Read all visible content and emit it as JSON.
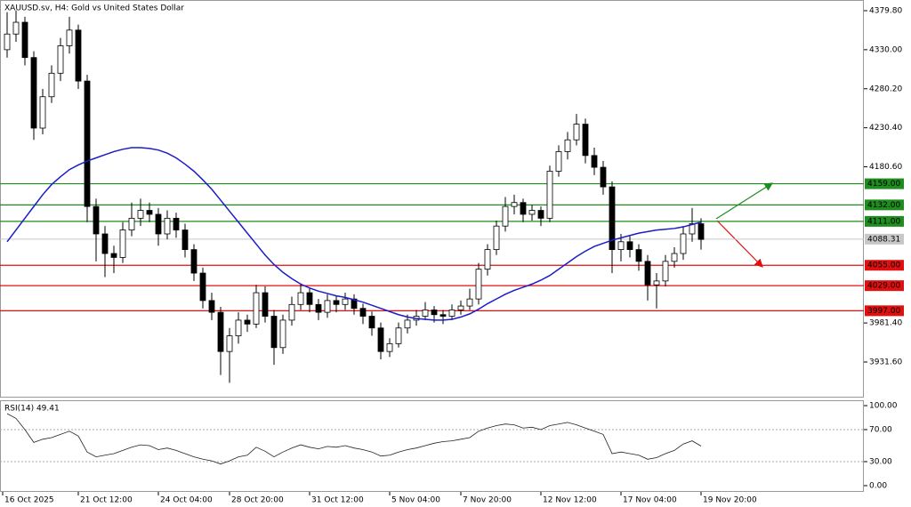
{
  "chart_data": [
    {
      "type": "candlestick",
      "title": "XAUUSD.sv, H4:  Gold vs United States Dollar",
      "ylim": [
        3886.2,
        4393.4
      ],
      "yticks": [
        {
          "value": 4379.8,
          "label": "4379.80"
        },
        {
          "value": 4330,
          "label": "4330.00"
        },
        {
          "value": 4280.2,
          "label": "4280.20"
        },
        {
          "value": 4230.4,
          "label": "4230.40"
        },
        {
          "value": 4180.6,
          "label": "4180.60"
        },
        {
          "value": 3981.4,
          "label": "3981.40"
        },
        {
          "value": 3931.6,
          "label": "3931.60"
        }
      ],
      "categories": [
        "16 Oct 2025",
        null,
        null,
        null,
        null,
        null,
        null,
        null,
        "21 Oct 12:00",
        null,
        null,
        null,
        null,
        null,
        null,
        null,
        null,
        "24 Oct 04:00",
        null,
        null,
        null,
        null,
        null,
        null,
        null,
        "28 Oct 20:00",
        null,
        null,
        null,
        null,
        null,
        null,
        null,
        null,
        "31 Oct 12:00",
        null,
        null,
        null,
        null,
        null,
        null,
        null,
        null,
        "5 Nov 04:00",
        null,
        null,
        null,
        null,
        null,
        null,
        null,
        "7 Nov 20:00",
        null,
        null,
        null,
        null,
        null,
        null,
        null,
        null,
        "12 Nov 12:00",
        null,
        null,
        null,
        null,
        null,
        null,
        null,
        null,
        "17 Nov 04:00",
        null,
        null,
        null,
        null,
        null,
        null,
        null,
        null,
        "19 Nov 20:00"
      ],
      "open": [
        4330,
        4350,
        4365,
        4320,
        4230,
        4270,
        4300,
        4335,
        4355,
        4290,
        4130,
        4095,
        4070,
        4065,
        4100,
        4115,
        4125,
        4120,
        4095,
        4115,
        4100,
        4075,
        4045,
        4010,
        3995,
        3945,
        3965,
        3985,
        3980,
        4020,
        3990,
        3950,
        3985,
        4005,
        4020,
        4005,
        3995,
        4010,
        4005,
        4012,
        4000,
        3990,
        3975,
        3945,
        3955,
        3975,
        3985,
        3990,
        3998,
        3992,
        3990,
        3998,
        4003,
        4012,
        4050,
        4075,
        4105,
        4130,
        4135,
        4120,
        4125,
        4115,
        4175,
        4200,
        4215,
        4235,
        4195,
        4180,
        4155,
        4075,
        4085,
        4075,
        4060,
        4030,
        4035,
        4060,
        4070,
        4095,
        4108
      ],
      "high": [
        4378,
        4380,
        4372,
        4328,
        4280,
        4310,
        4345,
        4372,
        4362,
        4298,
        4140,
        4105,
        4080,
        4110,
        4135,
        4140,
        4135,
        4128,
        4125,
        4122,
        4108,
        4082,
        4052,
        4020,
        4002,
        3975,
        3995,
        3992,
        4030,
        4028,
        3998,
        3992,
        4015,
        4032,
        4026,
        4012,
        4018,
        4016,
        4020,
        4018,
        4006,
        3996,
        3982,
        3962,
        3982,
        3992,
        3998,
        4008,
        4003,
        3998,
        4005,
        4010,
        4025,
        4058,
        4082,
        4112,
        4142,
        4145,
        4140,
        4132,
        4130,
        4182,
        4208,
        4225,
        4248,
        4242,
        4205,
        4188,
        4162,
        4095,
        4092,
        4082,
        4068,
        4045,
        4068,
        4078,
        4105,
        4128,
        4115
      ],
      "low": [
        4320,
        4340,
        4310,
        4215,
        4222,
        4262,
        4290,
        4325,
        4280,
        4110,
        4060,
        4040,
        4045,
        4058,
        4092,
        4105,
        4110,
        4080,
        4088,
        4090,
        4065,
        4035,
        4000,
        3985,
        3915,
        3905,
        3955,
        3970,
        3975,
        3982,
        3928,
        3942,
        3978,
        3998,
        3995,
        3985,
        3988,
        3995,
        3998,
        3992,
        3980,
        3965,
        3935,
        3938,
        3950,
        3968,
        3978,
        3985,
        3982,
        3980,
        3985,
        3992,
        3998,
        4005,
        4042,
        4068,
        4098,
        4120,
        4110,
        4112,
        4105,
        4110,
        4168,
        4190,
        4208,
        4185,
        4170,
        4145,
        4045,
        4060,
        4065,
        4048,
        4010,
        4000,
        4028,
        4052,
        4062,
        4085,
        4075
      ],
      "close": [
        4350,
        4365,
        4320,
        4230,
        4270,
        4300,
        4335,
        4355,
        4290,
        4130,
        4095,
        4070,
        4065,
        4100,
        4115,
        4125,
        4120,
        4095,
        4115,
        4100,
        4075,
        4045,
        4010,
        3995,
        3945,
        3965,
        3985,
        3980,
        4020,
        3990,
        3950,
        3985,
        4005,
        4020,
        4005,
        3995,
        4010,
        4005,
        4012,
        4000,
        3990,
        3975,
        3945,
        3955,
        3975,
        3985,
        3990,
        3998,
        3992,
        3990,
        3998,
        4003,
        4012,
        4050,
        4075,
        4105,
        4130,
        4135,
        4120,
        4125,
        4115,
        4175,
        4200,
        4215,
        4235,
        4195,
        4180,
        4155,
        4075,
        4085,
        4075,
        4060,
        4030,
        4035,
        4060,
        4070,
        4095,
        4108,
        4088
      ],
      "moving_average": {
        "color": "#1c1cc8",
        "values": [
          4085,
          4100,
          4115,
          4130,
          4145,
          4158,
          4168,
          4177,
          4183,
          4188,
          4192,
          4196,
          4200,
          4203,
          4205,
          4205,
          4204,
          4202,
          4198,
          4192,
          4184,
          4175,
          4164,
          4152,
          4138,
          4124,
          4110,
          4096,
          4082,
          4068,
          4056,
          4046,
          4038,
          4031,
          4026,
          4022,
          4019,
          4016,
          4014,
          4011,
          4008,
          4004,
          4000,
          3996,
          3992,
          3989,
          3987,
          3986,
          3985,
          3985,
          3986,
          3989,
          3993,
          3999,
          4006,
          4012,
          4018,
          4023,
          4027,
          4031,
          4036,
          4042,
          4050,
          4058,
          4066,
          4073,
          4079,
          4083,
          4087,
          4090,
          4093,
          4096,
          4098,
          4100,
          4101,
          4102,
          4104,
          4107,
          4110
        ]
      },
      "levels": [
        {
          "value": 4159,
          "label": "4159.00",
          "color": "#1e8c1e"
        },
        {
          "value": 4132,
          "label": "4132.00",
          "color": "#1e8c1e"
        },
        {
          "value": 4111,
          "label": "4111.00",
          "color": "#1e8c1e"
        },
        {
          "value": 4055,
          "label": "4055.00",
          "color": "#e01010"
        },
        {
          "value": 4029,
          "label": "4029.00",
          "color": "#e01010"
        },
        {
          "value": 3997,
          "label": "3997.00",
          "color": "#e01010"
        }
      ],
      "current_price": {
        "value": 4088.31,
        "label": "4088.31",
        "color": "#c8c8c8"
      }
    },
    {
      "type": "line",
      "title": "RSI(14) 49.41",
      "color": "#222222",
      "ylim": [
        -6.7,
        106.7
      ],
      "yticks": [
        {
          "value": 100,
          "label": "100.00"
        },
        {
          "value": 70,
          "label": "70.00"
        },
        {
          "value": 30,
          "label": "30.00"
        },
        {
          "value": 0,
          "label": "0.00"
        }
      ],
      "values": [
        90,
        84,
        70,
        54,
        58,
        60,
        64,
        68,
        62,
        42,
        36,
        38,
        40,
        44,
        48,
        51,
        50,
        45,
        47,
        44,
        40,
        36,
        33,
        31,
        27,
        31,
        36,
        38,
        48,
        43,
        36,
        42,
        47,
        51,
        48,
        46,
        49,
        48,
        50,
        47,
        45,
        42,
        37,
        38,
        42,
        45,
        47,
        50,
        53,
        55,
        56,
        58,
        60,
        68,
        72,
        75,
        77,
        76,
        72,
        73,
        70,
        75,
        77,
        79,
        76,
        72,
        68,
        64,
        40,
        42,
        40,
        38,
        33,
        35,
        40,
        44,
        52,
        56,
        49.41
      ]
    }
  ]
}
